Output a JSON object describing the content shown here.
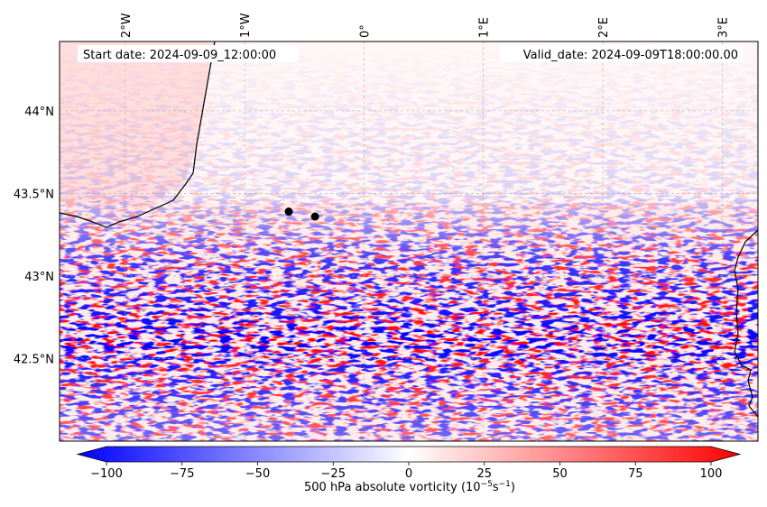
{
  "map": {
    "start_date": "Start date: 2024-09-09_12:00:00",
    "valid_date": "Valid_date: 2024-09-09T18:00:00.00",
    "lon_labels": [
      {
        "text": "2°W",
        "lon": -2
      },
      {
        "text": "1°W",
        "lon": -1
      },
      {
        "text": "0°",
        "lon": 0
      },
      {
        "text": "1°E",
        "lon": 1
      },
      {
        "text": "2°E",
        "lon": 2
      },
      {
        "text": "3°E",
        "lon": 3
      }
    ],
    "lat_labels": [
      {
        "text": "44°N",
        "lat": 44.0
      },
      {
        "text": "43.5°N",
        "lat": 43.5
      },
      {
        "text": "43°N",
        "lat": 43.0
      },
      {
        "text": "42.5°N",
        "lat": 42.5
      }
    ],
    "extent": {
      "lon_min": -2.55,
      "lon_max": 3.3,
      "lat_min": 42.0,
      "lat_max": 44.42
    },
    "points": [
      {
        "name": "point-1",
        "lon": -0.63,
        "lat": 43.39
      },
      {
        "name": "point-2",
        "lon": -0.41,
        "lat": 43.36
      }
    ]
  },
  "colorbar": {
    "label_prefix": "500 hPa absolute vorticity (10",
    "label_exp1": "−5",
    "label_mid": "s",
    "label_exp2": "−1",
    "label_suffix": ")",
    "min": -100,
    "max": 100,
    "ticks": [
      {
        "value": -100,
        "text": "−100"
      },
      {
        "value": -75,
        "text": "−75"
      },
      {
        "value": -50,
        "text": "−50"
      },
      {
        "value": -25,
        "text": "−25"
      },
      {
        "value": 0,
        "text": "0"
      },
      {
        "value": 25,
        "text": "25"
      },
      {
        "value": 50,
        "text": "50"
      },
      {
        "value": 75,
        "text": "75"
      },
      {
        "value": 100,
        "text": "100"
      }
    ],
    "color_low": "#0000ff",
    "color_mid": "#ffffff",
    "color_high": "#ff0000"
  },
  "colors": {
    "coastline": "#000000",
    "grid": "#b0b0b0",
    "marker": "#000000"
  }
}
